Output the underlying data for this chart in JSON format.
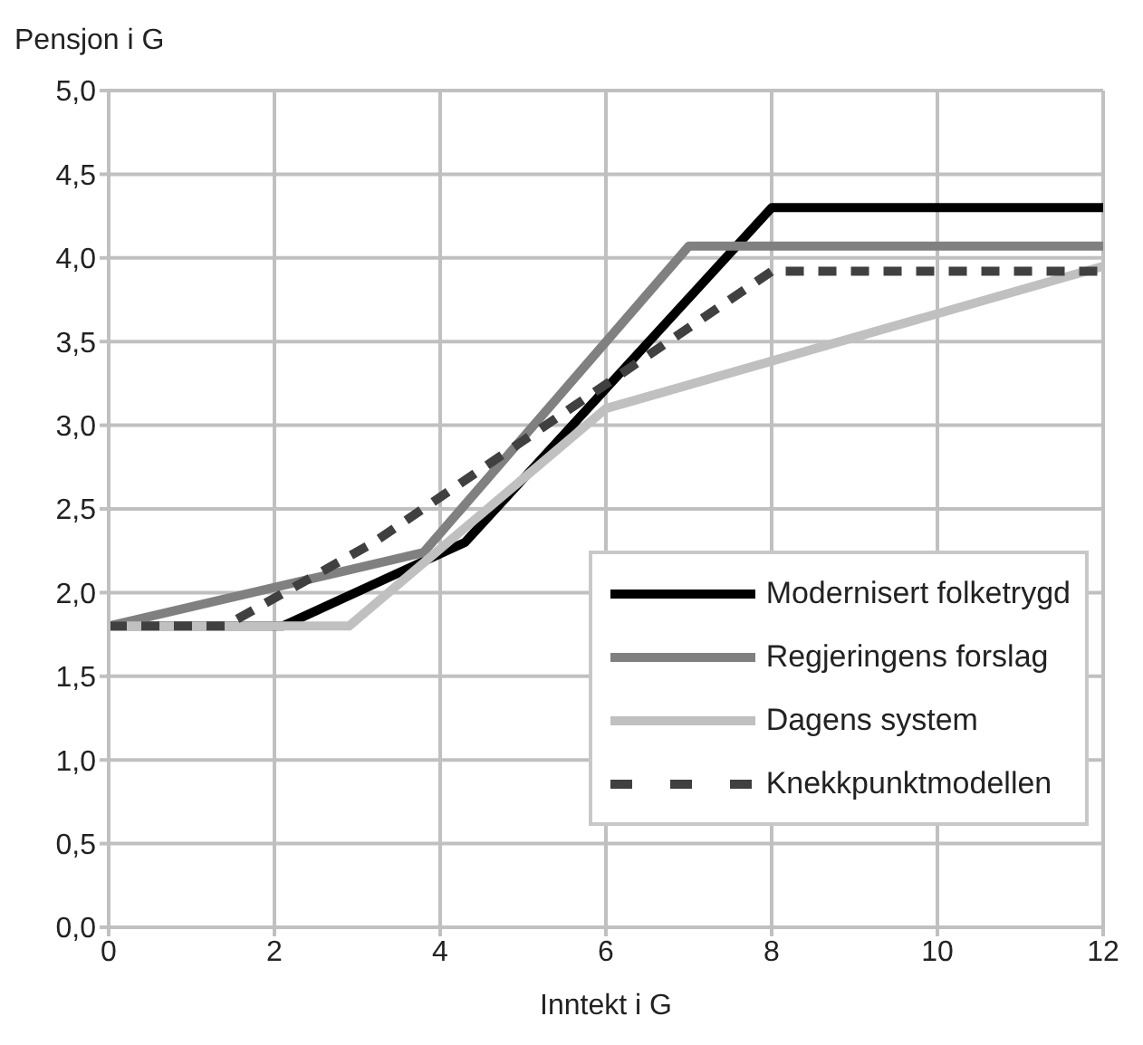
{
  "chart_data": {
    "type": "line",
    "xlabel": "Inntekt i G",
    "ylabel": "Pensjon i G",
    "xlim": [
      0,
      12
    ],
    "xticks": [
      0,
      2,
      4,
      6,
      8,
      10,
      12
    ],
    "ylim": [
      0,
      5
    ],
    "yticks": [
      {
        "value": 0,
        "label": "0,0"
      },
      {
        "value": 0.5,
        "label": "0,5"
      },
      {
        "value": 1,
        "label": "1,0"
      },
      {
        "value": 1.5,
        "label": "1,5"
      },
      {
        "value": 2,
        "label": "2,0"
      },
      {
        "value": 2.5,
        "label": "2,5"
      },
      {
        "value": 3,
        "label": "3,0"
      },
      {
        "value": 3.5,
        "label": "3,5"
      },
      {
        "value": 4,
        "label": "4,0"
      },
      {
        "value": 4.5,
        "label": "4,5"
      },
      {
        "value": 5,
        "label": "5,0"
      }
    ],
    "grid": true,
    "legend": "bottom right",
    "marker": "none",
    "series": [
      {
        "name": "Modernisert folketrygd",
        "color": "#000000",
        "x": [
          0,
          2.1,
          4.3,
          8,
          12
        ],
        "values": [
          1.8,
          1.8,
          2.3,
          4.3,
          4.3
        ]
      },
      {
        "name": "Regjeringens forslag",
        "color": "#808080",
        "x": [
          0,
          3.8,
          7,
          12
        ],
        "values": [
          1.8,
          2.24,
          4.07,
          4.07
        ]
      },
      {
        "name": "Dagens system",
        "color": "#c0c0c0",
        "x": [
          0,
          2.9,
          6,
          12
        ],
        "values": [
          1.8,
          1.8,
          3.1,
          3.95
        ]
      },
      {
        "name": "Knekkpunktmodellen",
        "color": "#404040",
        "line_style": "dashed",
        "x": [
          0,
          1.4,
          3.2,
          8,
          12
        ],
        "values": [
          1.8,
          1.8,
          2.3,
          3.92,
          3.92
        ]
      }
    ]
  }
}
